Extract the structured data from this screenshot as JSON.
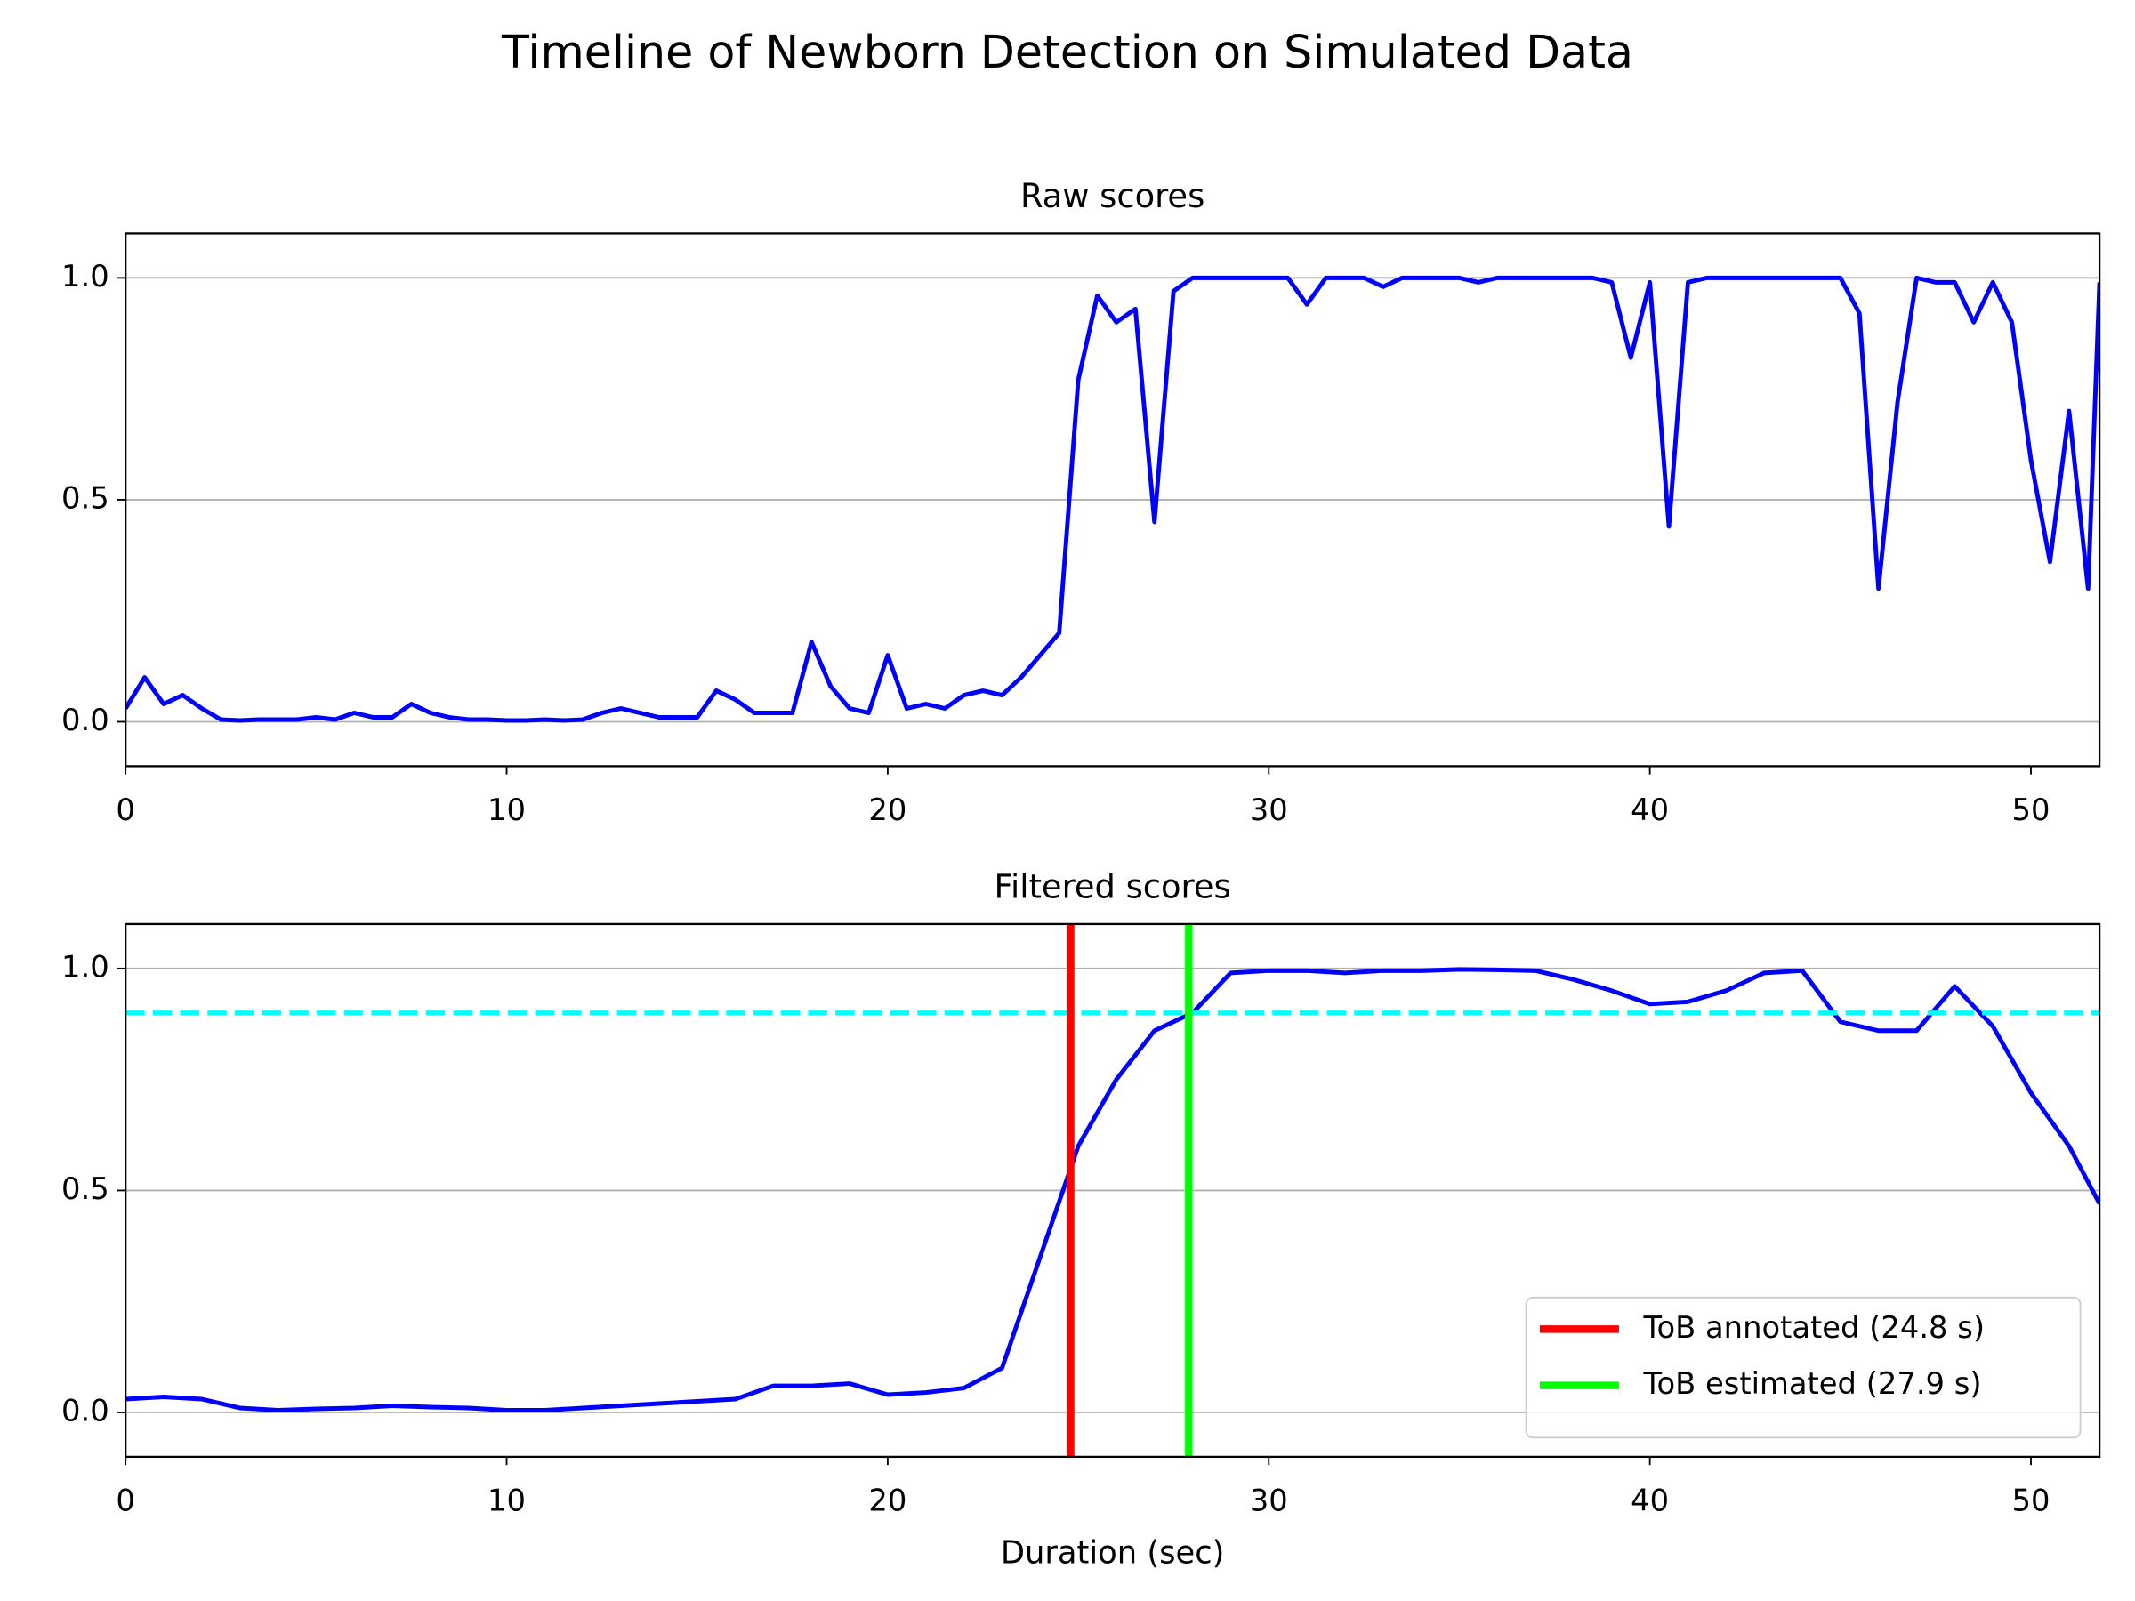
{
  "title": "Timeline of Newborn Detection on Simulated Data",
  "chart_data": [
    {
      "type": "line",
      "title": "Raw scores",
      "x": [
        0,
        0.5,
        1,
        1.5,
        2,
        2.5,
        3,
        3.5,
        4,
        4.5,
        5,
        5.5,
        6,
        6.5,
        7,
        7.5,
        8,
        8.5,
        9,
        9.5,
        10,
        10.5,
        11,
        11.5,
        12,
        12.5,
        13,
        13.5,
        14,
        14.5,
        15,
        15.5,
        16,
        16.5,
        17,
        17.5,
        18,
        18.5,
        19,
        19.5,
        20,
        20.5,
        21,
        21.5,
        22,
        22.5,
        23,
        23.5,
        24,
        24.5,
        25,
        25.5,
        26,
        26.5,
        27,
        27.5,
        28,
        28.5,
        29,
        29.5,
        30,
        30.5,
        31,
        31.5,
        32,
        32.5,
        33,
        33.5,
        34,
        34.5,
        35,
        35.5,
        36,
        36.5,
        37,
        37.5,
        38,
        38.5,
        39,
        39.5,
        40,
        40.5,
        41,
        41.5,
        42,
        42.5,
        43,
        43.5,
        44,
        44.5,
        45,
        45.5,
        46,
        46.5,
        47,
        47.5,
        48,
        48.5,
        49,
        49.5,
        50,
        50.5,
        51,
        51.5,
        51.8
      ],
      "series": [
        {
          "color": "#0000ff",
          "values": [
            0.03,
            0.1,
            0.04,
            0.06,
            0.03,
            0.005,
            0.003,
            0.005,
            0.005,
            0.005,
            0.01,
            0.005,
            0.02,
            0.01,
            0.01,
            0.04,
            0.02,
            0.01,
            0.005,
            0.005,
            0.003,
            0.003,
            0.005,
            0.003,
            0.005,
            0.02,
            0.03,
            0.02,
            0.01,
            0.01,
            0.01,
            0.07,
            0.05,
            0.02,
            0.02,
            0.02,
            0.18,
            0.08,
            0.03,
            0.02,
            0.15,
            0.03,
            0.04,
            0.03,
            0.06,
            0.07,
            0.06,
            0.1,
            0.15,
            0.2,
            0.77,
            0.96,
            0.9,
            0.93,
            0.45,
            0.97,
            1.0,
            1.0,
            1.0,
            1.0,
            1.0,
            1.0,
            0.94,
            1.0,
            1.0,
            1.0,
            0.98,
            1.0,
            1.0,
            1.0,
            1.0,
            0.99,
            1.0,
            1.0,
            1.0,
            1.0,
            1.0,
            1.0,
            0.99,
            0.82,
            0.99,
            0.44,
            0.99,
            1.0,
            1.0,
            1.0,
            1.0,
            1.0,
            1.0,
            1.0,
            1.0,
            0.92,
            0.3,
            0.72,
            1.0,
            0.99,
            0.99,
            0.9,
            0.99,
            0.9,
            0.59,
            0.36,
            0.7,
            0.3,
            0.99
          ]
        }
      ],
      "xlim": [
        0,
        51.8
      ],
      "xticks": [
        0,
        10,
        20,
        30,
        40,
        50
      ],
      "ylim": [
        -0.1,
        1.1
      ],
      "yticks": [
        {
          "value": 0,
          "label": "0.0"
        },
        0.5,
        {
          "value": 1,
          "label": "1.0"
        }
      ],
      "grid": "y"
    },
    {
      "type": "line",
      "title": "Filtered scores",
      "xlabel": "Duration (sec)",
      "x": [
        0,
        1,
        2,
        3,
        4,
        5,
        6,
        7,
        8,
        9,
        10,
        11,
        12,
        13,
        14,
        15,
        16,
        17,
        18,
        19,
        20,
        21,
        22,
        23,
        24,
        25,
        26,
        27,
        28,
        29,
        30,
        31,
        32,
        33,
        34,
        35,
        36,
        37,
        38,
        39,
        40,
        41,
        42,
        43,
        44,
        45,
        46,
        47,
        48,
        49,
        50,
        51,
        51.8
      ],
      "series": [
        {
          "color": "#0000ff",
          "values": [
            0.03,
            0.035,
            0.03,
            0.01,
            0.005,
            0.008,
            0.01,
            0.015,
            0.012,
            0.01,
            0.005,
            0.005,
            0.01,
            0.015,
            0.02,
            0.025,
            0.03,
            0.06,
            0.06,
            0.065,
            0.04,
            0.045,
            0.055,
            0.1,
            0.35,
            0.6,
            0.75,
            0.86,
            0.9,
            0.99,
            0.995,
            0.995,
            0.99,
            0.995,
            0.995,
            0.998,
            0.997,
            0.995,
            0.975,
            0.95,
            0.92,
            0.925,
            0.95,
            0.99,
            0.995,
            0.88,
            0.86,
            0.86,
            0.96,
            0.87,
            0.72,
            0.6,
            0.47
          ]
        }
      ],
      "hline": {
        "value": 0.9,
        "color": "#00ffff",
        "dashed": true
      },
      "vlines": [
        {
          "label": "ToB annotated (24.8 s)",
          "value": 24.8,
          "color": "#ff0000"
        },
        {
          "label": "ToB estimated (27.9 s)",
          "value": 27.9,
          "color": "#00ff00"
        }
      ],
      "legend": "lower right",
      "xlim": [
        0,
        51.8
      ],
      "xticks": [
        0,
        10,
        20,
        30,
        40,
        50
      ],
      "ylim": [
        -0.1,
        1.1
      ],
      "yticks": [
        {
          "value": 0,
          "label": "0.0"
        },
        0.5,
        {
          "value": 1,
          "label": "1.0"
        }
      ],
      "grid": "y"
    }
  ]
}
